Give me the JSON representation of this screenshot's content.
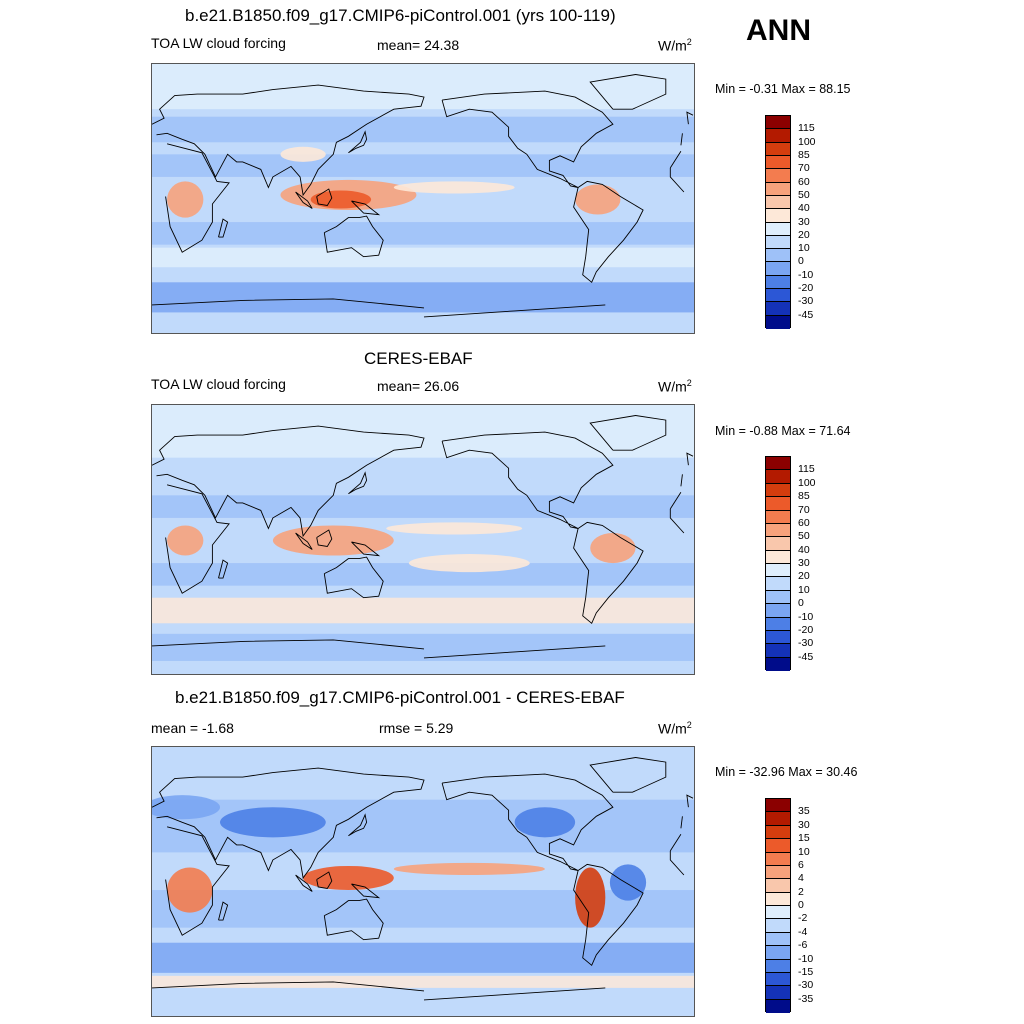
{
  "season": "ANN",
  "panels": [
    {
      "title": "b.e21.B1850.f09_g17.CMIP6-piControl.001 (yrs 100-119)",
      "left_label": "TOA LW cloud forcing",
      "center_label": "mean=  24.38",
      "units": "W/m",
      "units_sup": "2",
      "minmax": "Min =  -0.31 Max =  88.15",
      "colorbar": {
        "levels": [
          "115",
          "100",
          "85",
          "70",
          "60",
          "50",
          "40",
          "30",
          "20",
          "10",
          "0",
          "-10",
          "-20",
          "-30",
          "-45"
        ],
        "colors": [
          "#8b0000",
          "#b31a00",
          "#d43d0e",
          "#ec5a2a",
          "#f37c4f",
          "#f7a27c",
          "#f9c7ac",
          "#fde8d8",
          "#dfeefc",
          "#c1dafb",
          "#9ec1f8",
          "#7aa5f2",
          "#4d7fe6",
          "#2c57d6",
          "#1432b8",
          "#000c8a"
        ]
      },
      "map": {
        "ocean": "#c1dafb",
        "bands": [
          {
            "lat": [
              60,
              90
            ],
            "color": "#dfeefc"
          },
          {
            "lat": [
              38,
              55
            ],
            "color": "#9ec1f8"
          },
          {
            "lat": [
              15,
              30
            ],
            "color": "#9ec1f8"
          },
          {
            "lat": [
              -30,
              -15
            ],
            "color": "#9ec1f8"
          },
          {
            "lat": [
              -45,
              -32
            ],
            "color": "#dfeefc"
          },
          {
            "lat": [
              -75,
              -55
            ],
            "color": "#7aa5f2"
          }
        ],
        "blobs": [
          {
            "lon": 130,
            "lat": 3,
            "rx": 45,
            "ry": 10,
            "color": "#f7a27c"
          },
          {
            "lon": 125,
            "lat": 0,
            "rx": 20,
            "ry": 6,
            "color": "#ec5a2a"
          },
          {
            "lon": -160,
            "lat": 8,
            "rx": 40,
            "ry": 4,
            "color": "#fde8d8"
          },
          {
            "lon": -65,
            "lat": 0,
            "rx": 15,
            "ry": 10,
            "color": "#f7a27c"
          },
          {
            "lon": 22,
            "lat": 0,
            "rx": 12,
            "ry": 12,
            "color": "#f7a27c"
          },
          {
            "lon": 100,
            "lat": 30,
            "rx": 15,
            "ry": 5,
            "color": "#fde8d8"
          }
        ]
      }
    },
    {
      "title": "CERES-EBAF",
      "left_label": "TOA LW cloud forcing",
      "center_label": "mean=  26.06",
      "units": "W/m",
      "units_sup": "2",
      "minmax": "Min =  -0.88 Max =  71.64",
      "colorbar": {
        "levels": [
          "115",
          "100",
          "85",
          "70",
          "60",
          "50",
          "40",
          "30",
          "20",
          "10",
          "0",
          "-10",
          "-20",
          "-30",
          "-45"
        ],
        "colors": [
          "#8b0000",
          "#b31a00",
          "#d43d0e",
          "#ec5a2a",
          "#f37c4f",
          "#f7a27c",
          "#f9c7ac",
          "#fde8d8",
          "#dfeefc",
          "#c1dafb",
          "#9ec1f8",
          "#7aa5f2",
          "#4d7fe6",
          "#2c57d6",
          "#1432b8",
          "#000c8a"
        ]
      },
      "map": {
        "ocean": "#c1dafb",
        "bands": [
          {
            "lat": [
              55,
              90
            ],
            "color": "#dfeefc"
          },
          {
            "lat": [
              15,
              30
            ],
            "color": "#9ec1f8"
          },
          {
            "lat": [
              -30,
              -15
            ],
            "color": "#9ec1f8"
          },
          {
            "lat": [
              -55,
              -38
            ],
            "color": "#fde8d8"
          },
          {
            "lat": [
              -80,
              -62
            ],
            "color": "#9ec1f8"
          }
        ],
        "blobs": [
          {
            "lon": 120,
            "lat": 0,
            "rx": 40,
            "ry": 10,
            "color": "#f7a27c"
          },
          {
            "lon": -160,
            "lat": 8,
            "rx": 45,
            "ry": 4,
            "color": "#fde8d8"
          },
          {
            "lon": -55,
            "lat": -5,
            "rx": 15,
            "ry": 10,
            "color": "#f7a27c"
          },
          {
            "lon": 22,
            "lat": 0,
            "rx": 12,
            "ry": 10,
            "color": "#f7a27c"
          },
          {
            "lon": -150,
            "lat": -15,
            "rx": 40,
            "ry": 6,
            "color": "#fde8d8"
          }
        ]
      }
    },
    {
      "title": "b.e21.B1850.f09_g17.CMIP6-piControl.001 - CERES-EBAF",
      "left_label": "mean =  -1.68",
      "center_label": "rmse =   5.29",
      "units": "W/m",
      "units_sup": "2",
      "minmax": "Min = -32.96 Max =  30.46",
      "colorbar": {
        "levels": [
          "35",
          "30",
          "15",
          "10",
          "6",
          "4",
          "2",
          "0",
          "-2",
          "-4",
          "-6",
          "-10",
          "-15",
          "-30",
          "-35"
        ],
        "colors": [
          "#8b0000",
          "#b31a00",
          "#d43d0e",
          "#ec5a2a",
          "#f37c4f",
          "#f7a27c",
          "#f9c7ac",
          "#fde8d8",
          "#dfeefc",
          "#c1dafb",
          "#9ec1f8",
          "#7aa5f2",
          "#4d7fe6",
          "#2c57d6",
          "#1432b8",
          "#000c8a"
        ]
      },
      "map": {
        "ocean": "#c1dafb",
        "bands": [
          {
            "lat": [
              20,
              55
            ],
            "color": "#9ec1f8"
          },
          {
            "lat": [
              -30,
              -5
            ],
            "color": "#9ec1f8"
          },
          {
            "lat": [
              -60,
              -40
            ],
            "color": "#7aa5f2"
          },
          {
            "lat": [
              -70,
              -62
            ],
            "color": "#fde8d8"
          }
        ],
        "blobs": [
          {
            "lon": 130,
            "lat": 3,
            "rx": 30,
            "ry": 8,
            "color": "#ec5a2a"
          },
          {
            "lon": -150,
            "lat": 9,
            "rx": 50,
            "ry": 4,
            "color": "#f7a27c"
          },
          {
            "lon": -70,
            "lat": -10,
            "rx": 10,
            "ry": 20,
            "color": "#d43d0e"
          },
          {
            "lon": 25,
            "lat": -5,
            "rx": 15,
            "ry": 15,
            "color": "#f37c4f"
          },
          {
            "lon": -45,
            "lat": 0,
            "rx": 12,
            "ry": 12,
            "color": "#4d7fe6"
          },
          {
            "lon": 80,
            "lat": 40,
            "rx": 35,
            "ry": 10,
            "color": "#4d7fe6"
          },
          {
            "lon": -100,
            "lat": 40,
            "rx": 20,
            "ry": 10,
            "color": "#4d7fe6"
          },
          {
            "lon": 20,
            "lat": 50,
            "rx": 25,
            "ry": 8,
            "color": "#7aa5f2"
          }
        ]
      }
    }
  ],
  "continents": [
    {
      "name": "north-america",
      "color": "#000000",
      "points": [
        [
          -168,
          66
        ],
        [
          -140,
          70
        ],
        [
          -100,
          72
        ],
        [
          -80,
          68
        ],
        [
          -62,
          58
        ],
        [
          -55,
          50
        ],
        [
          -66,
          44
        ],
        [
          -76,
          35
        ],
        [
          -81,
          25
        ],
        [
          -90,
          29
        ],
        [
          -97,
          26
        ],
        [
          -97,
          19
        ],
        [
          -88,
          16
        ],
        [
          -83,
          9
        ],
        [
          -78,
          8
        ],
        [
          -90,
          14
        ],
        [
          -105,
          20
        ],
        [
          -112,
          30
        ],
        [
          -118,
          34
        ],
        [
          -124,
          42
        ],
        [
          -124,
          48
        ],
        [
          -135,
          58
        ],
        [
          -150,
          60
        ],
        [
          -165,
          55
        ],
        [
          -168,
          66
        ]
      ]
    },
    {
      "name": "south-america",
      "color": "#000000",
      "points": [
        [
          -78,
          8
        ],
        [
          -72,
          12
        ],
        [
          -62,
          10
        ],
        [
          -50,
          2
        ],
        [
          -35,
          -7
        ],
        [
          -39,
          -15
        ],
        [
          -48,
          -27
        ],
        [
          -58,
          -38
        ],
        [
          -66,
          -48
        ],
        [
          -69,
          -55
        ],
        [
          -75,
          -50
        ],
        [
          -73,
          -38
        ],
        [
          -71,
          -20
        ],
        [
          -81,
          -5
        ],
        [
          -78,
          8
        ]
      ]
    },
    {
      "name": "africa",
      "color": "#000000",
      "points": [
        [
          -17,
          21
        ],
        [
          -10,
          32
        ],
        [
          10,
          37
        ],
        [
          33,
          31
        ],
        [
          43,
          12
        ],
        [
          51,
          11
        ],
        [
          40,
          -3
        ],
        [
          40,
          -15
        ],
        [
          33,
          -27
        ],
        [
          20,
          -35
        ],
        [
          12,
          -18
        ],
        [
          9,
          2
        ],
        [
          -8,
          5
        ],
        [
          -17,
          15
        ],
        [
          -17,
          21
        ]
      ]
    },
    {
      "name": "eurasia",
      "color": "#000000",
      "points": [
        [
          -10,
          36
        ],
        [
          -9,
          44
        ],
        [
          0,
          50
        ],
        [
          8,
          54
        ],
        [
          5,
          60
        ],
        [
          15,
          69
        ],
        [
          30,
          70
        ],
        [
          60,
          70
        ],
        [
          80,
          73
        ],
        [
          110,
          76
        ],
        [
          140,
          72
        ],
        [
          170,
          70
        ],
        [
          180,
          68
        ],
        [
          178,
          62
        ],
        [
          160,
          60
        ],
        [
          142,
          50
        ],
        [
          130,
          42
        ],
        [
          122,
          38
        ],
        [
          120,
          30
        ],
        [
          110,
          20
        ],
        [
          105,
          10
        ],
        [
          100,
          3
        ],
        [
          98,
          15
        ],
        [
          92,
          22
        ],
        [
          80,
          15
        ],
        [
          77,
          8
        ],
        [
          72,
          20
        ],
        [
          60,
          25
        ],
        [
          56,
          25
        ],
        [
          50,
          30
        ],
        [
          42,
          15
        ],
        [
          35,
          30
        ],
        [
          28,
          37
        ],
        [
          20,
          40
        ],
        [
          10,
          44
        ],
        [
          3,
          43
        ],
        [
          -10,
          36
        ]
      ]
    },
    {
      "name": "australia",
      "color": "#000000",
      "points": [
        [
          114,
          -22
        ],
        [
          122,
          -18
        ],
        [
          130,
          -12
        ],
        [
          137,
          -12
        ],
        [
          142,
          -11
        ],
        [
          146,
          -18
        ],
        [
          153,
          -27
        ],
        [
          150,
          -37
        ],
        [
          140,
          -38
        ],
        [
          132,
          -32
        ],
        [
          116,
          -35
        ],
        [
          114,
          -22
        ]
      ]
    },
    {
      "name": "greenland",
      "color": "#000000",
      "points": [
        [
          -55,
          60
        ],
        [
          -42,
          60
        ],
        [
          -20,
          70
        ],
        [
          -20,
          80
        ],
        [
          -40,
          83
        ],
        [
          -70,
          78
        ],
        [
          -55,
          60
        ]
      ]
    },
    {
      "name": "antarctica",
      "color": "#000000",
      "points": [
        [
          -180,
          -78
        ],
        [
          -120,
          -74
        ],
        [
          -60,
          -70
        ],
        [
          0,
          -70
        ],
        [
          60,
          -67
        ],
        [
          120,
          -66
        ],
        [
          180,
          -72
        ]
      ]
    },
    {
      "name": "borneo",
      "color": "#000000",
      "points": [
        [
          109,
          2
        ],
        [
          117,
          7
        ],
        [
          119,
          1
        ],
        [
          116,
          -4
        ],
        [
          110,
          -3
        ],
        [
          109,
          2
        ]
      ]
    },
    {
      "name": "sumatra",
      "color": "#000000",
      "points": [
        [
          95,
          5
        ],
        [
          103,
          -1
        ],
        [
          106,
          -6
        ],
        [
          100,
          -2
        ],
        [
          95,
          5
        ]
      ]
    },
    {
      "name": "new-guinea",
      "color": "#000000",
      "points": [
        [
          132,
          -1
        ],
        [
          141,
          -3
        ],
        [
          150,
          -10
        ],
        [
          140,
          -9
        ],
        [
          132,
          -1
        ]
      ]
    },
    {
      "name": "madagascar",
      "color": "#000000",
      "points": [
        [
          44,
          -25
        ],
        [
          47,
          -13
        ],
        [
          50,
          -15
        ],
        [
          47,
          -25
        ],
        [
          44,
          -25
        ]
      ]
    },
    {
      "name": "japan",
      "color": "#000000",
      "points": [
        [
          130,
          31
        ],
        [
          135,
          34
        ],
        [
          140,
          36
        ],
        [
          142,
          40
        ],
        [
          141,
          45
        ],
        [
          138,
          38
        ],
        [
          130,
          31
        ]
      ]
    },
    {
      "name": "uk",
      "color": "#000000",
      "points": [
        [
          -5,
          50
        ],
        [
          1,
          51
        ],
        [
          -2,
          56
        ],
        [
          -6,
          58
        ],
        [
          -5,
          50
        ]
      ]
    }
  ]
}
